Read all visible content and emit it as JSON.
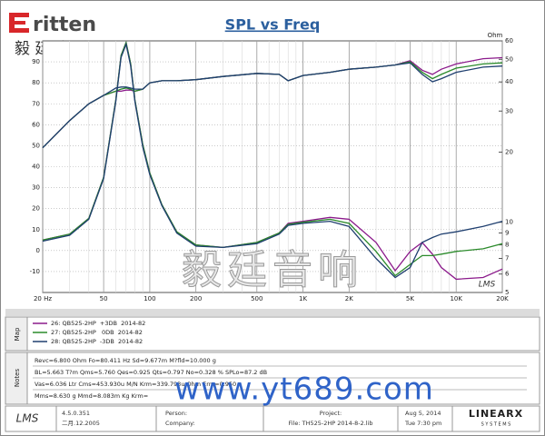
{
  "logo": {
    "brand": "ritten",
    "chinese": "毅 廷 音 响"
  },
  "chart_data": {
    "type": "line",
    "title": "SPL vs Freq",
    "y2_label": "Ohm",
    "corner_logo": "LMS",
    "x": [
      20,
      30,
      40,
      50,
      60,
      65,
      70,
      75,
      80,
      90,
      100,
      120,
      150,
      200,
      300,
      500,
      700,
      800,
      1000,
      1500,
      2000,
      3000,
      4000,
      5000,
      6000,
      7000,
      8000,
      10000,
      15000,
      20000
    ],
    "xlim": [
      20,
      20000
    ],
    "xscale": "log",
    "xticks": [
      {
        "value": 20,
        "label": "20 Hz"
      },
      50,
      100,
      200,
      500,
      {
        "value": 1000,
        "label": "1K"
      },
      {
        "value": 2000,
        "label": "2K"
      },
      {
        "value": 5000,
        "label": "5K"
      },
      {
        "value": 10000,
        "label": "10K"
      },
      {
        "value": 20000,
        "label": "20K"
      }
    ],
    "ylim": [
      -20,
      100
    ],
    "yticks": [
      -10,
      0,
      10,
      20,
      30,
      40,
      50,
      60,
      70,
      80,
      90
    ],
    "y2lim": [
      5,
      60
    ],
    "y2scale": "log",
    "y2ticks": [
      5,
      6,
      7,
      8,
      9,
      10,
      20,
      30,
      40,
      50,
      60
    ],
    "grid": true,
    "minor_grid": true,
    "series": [
      {
        "name": "26: QB525-2HP  +3DB  2014-82",
        "color": "#8b1a8b",
        "values": [
          49,
          62,
          70,
          74,
          76,
          76,
          76.5,
          76.5,
          76,
          77,
          80,
          81,
          81,
          81.5,
          83,
          84.5,
          84,
          81,
          83.5,
          85,
          86.5,
          87.5,
          88.5,
          90.5,
          86,
          84,
          86.5,
          89,
          91.5,
          92
        ],
        "y2_values": [
          8.4,
          8.9,
          10.4,
          15.6,
          33.5,
          52,
          59,
          48,
          33.5,
          21.5,
          16.3,
          11.9,
          9.1,
          8.0,
          7.8,
          8.2,
          9.0,
          9.9,
          10.1,
          10.5,
          10.3,
          8.2,
          6.2,
          7.5,
          8.2,
          7.3,
          6.4,
          5.7,
          5.8,
          6.3
        ]
      },
      {
        "name": "27: QB525-2HP   0DB  2014-82",
        "color": "#2a8a2a",
        "values": [
          49,
          62,
          70,
          74,
          76,
          77,
          77.5,
          77,
          76,
          77,
          80,
          81,
          81,
          81.5,
          83,
          84.5,
          84,
          81,
          83.5,
          85,
          86.5,
          87.5,
          88.5,
          90,
          85,
          82,
          84,
          87,
          89,
          89.5
        ],
        "y2_values": [
          8.4,
          8.9,
          10.4,
          15.6,
          33.5,
          52,
          59,
          48,
          33.5,
          21.5,
          16.3,
          11.9,
          9.1,
          8.0,
          7.8,
          8.2,
          9.0,
          9.8,
          10.0,
          10.3,
          9.9,
          7.5,
          5.9,
          6.6,
          7.2,
          7.2,
          7.3,
          7.5,
          7.7,
          8.1
        ]
      },
      {
        "name": "28: QB525-2HP  -3DB  2014-82",
        "color": "#1f3f6f",
        "values": [
          49,
          62,
          70,
          74,
          77.5,
          78,
          78,
          77.5,
          77,
          77,
          80,
          81,
          81,
          81.5,
          83,
          84.5,
          84,
          81,
          83.5,
          85,
          86.5,
          87.5,
          88.5,
          89.5,
          84,
          80.5,
          82,
          85,
          87.5,
          88
        ],
        "y2_values": [
          8.3,
          8.8,
          10.3,
          15.4,
          33,
          51,
          58,
          47,
          33,
          21,
          16,
          11.8,
          9.0,
          7.9,
          7.8,
          8.1,
          8.9,
          9.7,
          9.9,
          10.1,
          9.6,
          7.0,
          5.8,
          6.4,
          8.2,
          8.6,
          8.9,
          9.1,
          9.6,
          10.1
        ]
      }
    ]
  },
  "panels": {
    "map_tab": "Map",
    "notes_tab": "Notes"
  },
  "notes": [
    "Revc=6.800 Ohm  Fo=80.411 Hz  Sd=9.677m M?fld=10.000 g",
    "BL=5.663 T?m  Qms=5.760  Qes=0.925  Qts=0.797  No=0.328 %  SPLo=87.2 dB",
    "Vas=6.036 Ltr  Cms=453.930u M/N  Krm=339.793u Ohm  Erm=0.950",
    "Mms=8.630 g  Mmd=8.083m Kg  Krm="
  ],
  "watermark": {
    "chinese": "毅廷音响",
    "url": "www.yt689.com"
  },
  "footer": {
    "logo": "LMS",
    "version": "4.5.0.351",
    "build_date": "二月.12.2005",
    "person": "Person:",
    "company": "Company:",
    "project": "Project:",
    "file": "File: TH525-2HP   2014-8-2.lib",
    "date": "Aug  5, 2014",
    "time": "Tue  7:30 pm",
    "vendor": "LINEARX",
    "vendor_sub": "S Y S T E M S"
  }
}
